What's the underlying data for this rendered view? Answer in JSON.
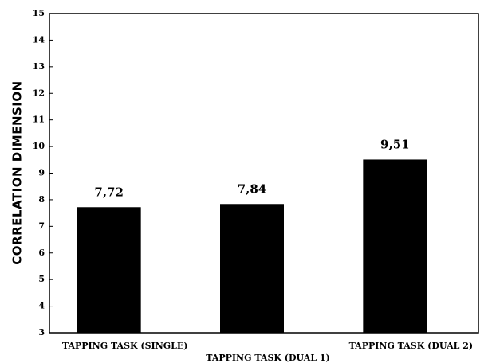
{
  "chart_data": {
    "type": "bar",
    "y_label": "CORRELATION DIMENSION",
    "categories": [
      "TAPPING TASK (SINGLE)",
      "TAPPING TASK (DUAL 1)",
      "TAPPING TASK (DUAL 2)"
    ],
    "values": [
      7.72,
      7.84,
      9.51
    ],
    "value_labels": [
      "7,72",
      "7,84",
      "9,51"
    ],
    "color": "#000000",
    "ylim": [
      3,
      15
    ],
    "yticks": [
      3,
      4,
      5,
      6,
      7,
      8,
      9,
      10,
      11,
      12,
      13,
      14,
      15
    ],
    "grid": false
  }
}
